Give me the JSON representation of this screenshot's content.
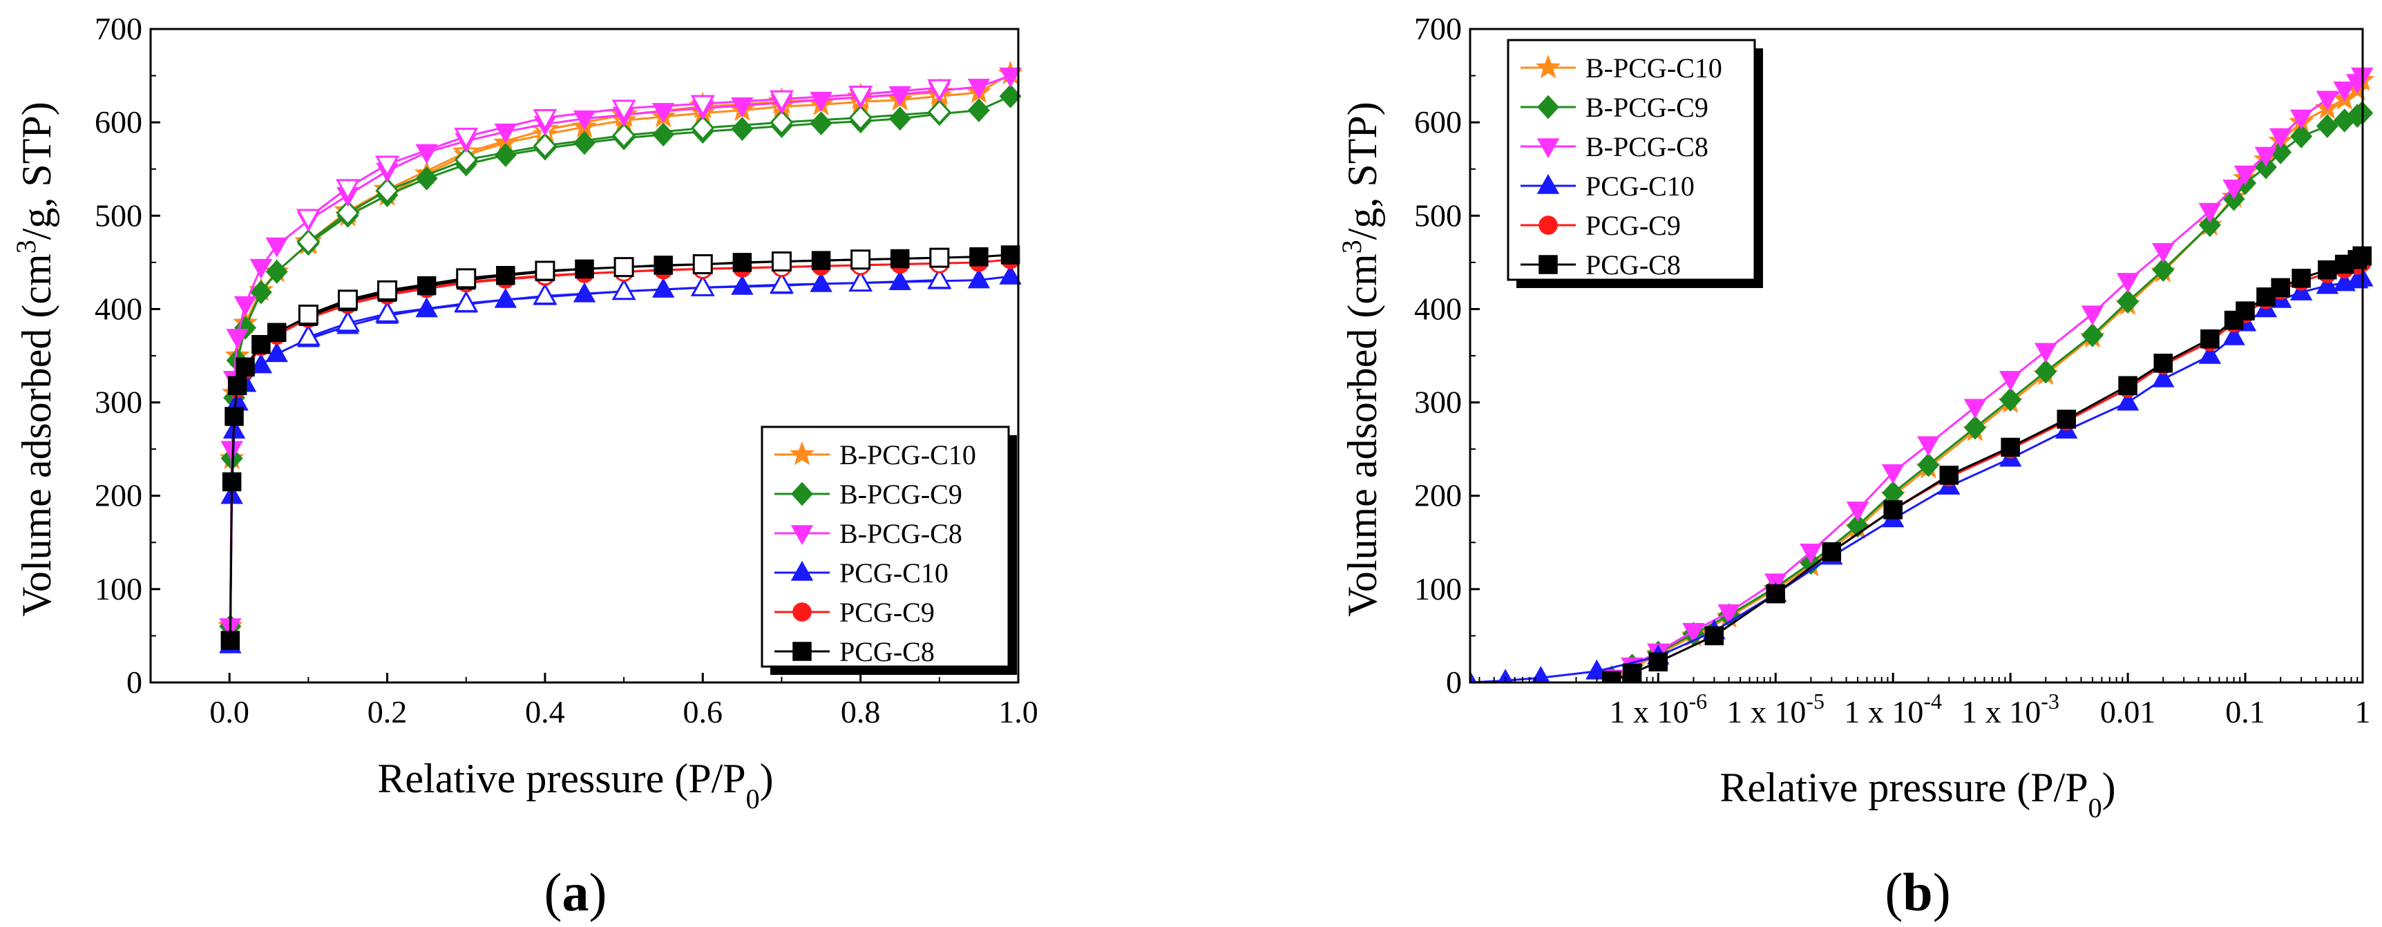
{
  "figure": {
    "panels": [
      {
        "label_open": "(",
        "label_letter": "a",
        "label_close": ")"
      },
      {
        "label_open": "(",
        "label_letter": "b",
        "label_close": ")"
      }
    ]
  },
  "chart_data": [
    {
      "type": "scatter",
      "xlabel": "Relative pressure (P/P0)",
      "ylabel": "Volume adsorbed (cm3/g, STP)",
      "xlim": [
        -0.1,
        1.0
      ],
      "ylim": [
        0,
        700
      ],
      "xticks": [
        0.0,
        0.2,
        0.4,
        0.6,
        0.8,
        1.0
      ],
      "xtick_labels": [
        "0.0",
        "0.2",
        "0.4",
        "0.6",
        "0.8",
        "1.0"
      ],
      "yticks": [
        0,
        100,
        200,
        300,
        400,
        500,
        600,
        700
      ],
      "ytick_labels": [
        "0",
        "100",
        "200",
        "300",
        "400",
        "500",
        "600",
        "700"
      ],
      "grid": false,
      "legend_position": "bottom-right",
      "series": [
        {
          "name": "B-PCG-C10",
          "color": "#ff8c1a",
          "marker": "star",
          "x": [
            0.001,
            0.003,
            0.006,
            0.01,
            0.02,
            0.04,
            0.06,
            0.1,
            0.15,
            0.2,
            0.25,
            0.3,
            0.35,
            0.4,
            0.45,
            0.5,
            0.55,
            0.6,
            0.65,
            0.7,
            0.75,
            0.8,
            0.85,
            0.9,
            0.95,
            0.99
          ],
          "y": [
            60,
            240,
            310,
            350,
            385,
            420,
            440,
            470,
            500,
            522,
            545,
            565,
            578,
            587,
            595,
            602,
            606,
            610,
            613,
            617,
            619,
            622,
            624,
            628,
            632,
            652
          ],
          "desorption_x": [
            0.9,
            0.8,
            0.7,
            0.6,
            0.5,
            0.4,
            0.3,
            0.2,
            0.15,
            0.1
          ],
          "desorption_y": [
            632,
            627,
            622,
            617,
            608,
            592,
            568,
            528,
            505,
            472
          ]
        },
        {
          "name": "B-PCG-C9",
          "color": "#1e8c1e",
          "marker": "diamond",
          "x": [
            0.001,
            0.003,
            0.006,
            0.01,
            0.02,
            0.04,
            0.06,
            0.1,
            0.15,
            0.2,
            0.25,
            0.3,
            0.35,
            0.4,
            0.45,
            0.5,
            0.55,
            0.6,
            0.65,
            0.7,
            0.75,
            0.8,
            0.85,
            0.9,
            0.95,
            0.99
          ],
          "y": [
            60,
            240,
            305,
            345,
            380,
            418,
            440,
            470,
            500,
            522,
            540,
            555,
            565,
            572,
            578,
            583,
            587,
            590,
            593,
            596,
            599,
            601,
            604,
            609,
            613,
            628
          ],
          "desorption_x": [
            0.9,
            0.8,
            0.7,
            0.6,
            0.5,
            0.4,
            0.3,
            0.2,
            0.15,
            0.1
          ],
          "desorption_y": [
            611,
            605,
            600,
            594,
            586,
            575,
            560,
            527,
            503,
            472
          ]
        },
        {
          "name": "B-PCG-C8",
          "color": "#ff33ff",
          "marker": "triangle-down",
          "x": [
            0.001,
            0.003,
            0.006,
            0.01,
            0.02,
            0.04,
            0.06,
            0.1,
            0.15,
            0.2,
            0.25,
            0.3,
            0.35,
            0.4,
            0.45,
            0.5,
            0.55,
            0.6,
            0.65,
            0.7,
            0.75,
            0.8,
            0.85,
            0.9,
            0.95,
            0.99
          ],
          "y": [
            60,
            250,
            325,
            370,
            405,
            445,
            468,
            495,
            522,
            548,
            568,
            580,
            590,
            598,
            604,
            608,
            612,
            615,
            618,
            621,
            624,
            627,
            630,
            634,
            638,
            650
          ],
          "desorption_x": [
            0.9,
            0.8,
            0.7,
            0.6,
            0.5,
            0.4,
            0.3,
            0.2,
            0.15,
            0.1
          ],
          "desorption_y": [
            637,
            630,
            625,
            620,
            615,
            605,
            585,
            555,
            530,
            498
          ]
        },
        {
          "name": "PCG-C10",
          "color": "#1a1aff",
          "marker": "triangle-up",
          "x": [
            0.001,
            0.003,
            0.006,
            0.01,
            0.02,
            0.04,
            0.06,
            0.1,
            0.15,
            0.2,
            0.25,
            0.3,
            0.35,
            0.4,
            0.45,
            0.5,
            0.55,
            0.6,
            0.65,
            0.7,
            0.75,
            0.8,
            0.85,
            0.9,
            0.95,
            0.99
          ],
          "y": [
            40,
            200,
            270,
            300,
            320,
            340,
            352,
            368,
            382,
            393,
            400,
            405,
            410,
            413,
            416,
            419,
            421,
            423,
            424,
            425,
            427,
            428,
            429,
            430,
            431,
            435
          ],
          "desorption_x": [
            0.9,
            0.8,
            0.7,
            0.6,
            0.5,
            0.4,
            0.3,
            0.2,
            0.15,
            0.1
          ],
          "desorption_y": [
            431,
            428,
            426,
            423,
            419,
            414,
            406,
            395,
            385,
            370
          ]
        },
        {
          "name": "PCG-C9",
          "color": "#ff1a1a",
          "marker": "circle",
          "x": [
            0.001,
            0.003,
            0.006,
            0.01,
            0.02,
            0.04,
            0.06,
            0.1,
            0.15,
            0.2,
            0.25,
            0.3,
            0.35,
            0.4,
            0.45,
            0.5,
            0.55,
            0.6,
            0.65,
            0.7,
            0.75,
            0.8,
            0.85,
            0.9,
            0.95,
            0.99
          ],
          "y": [
            45,
            215,
            285,
            315,
            335,
            360,
            372,
            390,
            405,
            415,
            422,
            428,
            432,
            435,
            438,
            440,
            442,
            443,
            444,
            445,
            446,
            447,
            448,
            449,
            450,
            453
          ],
          "desorption_x": [
            0.9,
            0.8,
            0.7,
            0.6,
            0.5,
            0.4,
            0.3,
            0.2,
            0.15,
            0.1
          ],
          "desorption_y": [
            449,
            447,
            445,
            443,
            440,
            436,
            429,
            417,
            407,
            392
          ]
        },
        {
          "name": "PCG-C8",
          "color": "#000000",
          "marker": "square",
          "x": [
            0.001,
            0.003,
            0.006,
            0.01,
            0.02,
            0.04,
            0.06,
            0.1,
            0.15,
            0.2,
            0.25,
            0.3,
            0.35,
            0.4,
            0.45,
            0.5,
            0.55,
            0.6,
            0.65,
            0.7,
            0.75,
            0.8,
            0.85,
            0.9,
            0.95,
            0.99
          ],
          "y": [
            45,
            215,
            285,
            318,
            338,
            362,
            375,
            392,
            408,
            418,
            425,
            431,
            436,
            440,
            443,
            445,
            447,
            448,
            450,
            451,
            452,
            453,
            454,
            455,
            456,
            458
          ],
          "desorption_x": [
            0.9,
            0.8,
            0.7,
            0.6,
            0.5,
            0.4,
            0.3,
            0.2,
            0.15,
            0.1
          ],
          "desorption_y": [
            455,
            453,
            451,
            448,
            445,
            441,
            433,
            420,
            410,
            394
          ]
        }
      ]
    },
    {
      "type": "scatter",
      "xscale": "log",
      "xlabel": "Relative pressure (P/P0)",
      "ylabel": "Volume adsorbed (cm3/g, STP)",
      "xlim": [
        2.5e-08,
        1.0
      ],
      "ylim": [
        0,
        700
      ],
      "xticks": [
        1e-06,
        1e-05,
        0.0001,
        0.001,
        0.01,
        0.1,
        1
      ],
      "xtick_labels": [
        "1 x 10",
        "1 x 10",
        "1 x 10",
        "1 x 10",
        "0.01",
        "0.1",
        "1"
      ],
      "xtick_exponents": [
        "-6",
        "-5",
        "-4",
        "-3",
        "",
        "",
        ""
      ],
      "yticks": [
        0,
        100,
        200,
        300,
        400,
        500,
        600,
        700
      ],
      "ytick_labels": [
        "0",
        "100",
        "200",
        "300",
        "400",
        "500",
        "600",
        "700"
      ],
      "grid": false,
      "legend_position": "top-left",
      "series": [
        {
          "name": "B-PCG-C10",
          "color": "#ff8c1a",
          "marker": "star",
          "x": [
            4e-07,
            6e-07,
            1e-06,
            2e-06,
            4e-06,
            1e-05,
            2e-05,
            5e-05,
            0.0001,
            0.0002,
            0.0005,
            0.001,
            0.002,
            0.005,
            0.01,
            0.02,
            0.05,
            0.08,
            0.1,
            0.15,
            0.2,
            0.3,
            0.5,
            0.7,
            0.9,
            0.99
          ],
          "y": [
            5,
            15,
            30,
            50,
            70,
            100,
            125,
            165,
            200,
            230,
            270,
            300,
            330,
            370,
            405,
            440,
            490,
            520,
            540,
            560,
            580,
            600,
            615,
            625,
            635,
            645
          ]
        },
        {
          "name": "B-PCG-C9",
          "color": "#1e8c1e",
          "marker": "diamond",
          "x": [
            4e-07,
            6e-07,
            1e-06,
            2e-06,
            4e-06,
            1e-05,
            2e-05,
            5e-05,
            0.0001,
            0.0002,
            0.0005,
            0.001,
            0.002,
            0.005,
            0.01,
            0.02,
            0.05,
            0.08,
            0.1,
            0.15,
            0.2,
            0.3,
            0.5,
            0.7,
            0.9,
            0.99
          ],
          "y": [
            5,
            18,
            32,
            52,
            72,
            102,
            128,
            168,
            203,
            233,
            273,
            303,
            333,
            372,
            408,
            442,
            490,
            518,
            535,
            552,
            568,
            585,
            596,
            602,
            607,
            610
          ]
        },
        {
          "name": "B-PCG-C8",
          "color": "#ff33ff",
          "marker": "triangle-down",
          "x": [
            4e-07,
            6e-07,
            1e-06,
            2e-06,
            4e-06,
            1e-05,
            2e-05,
            5e-05,
            0.0001,
            0.0002,
            0.0005,
            0.001,
            0.002,
            0.005,
            0.01,
            0.02,
            0.05,
            0.08,
            0.1,
            0.15,
            0.2,
            0.3,
            0.5,
            0.7,
            0.9,
            0.99
          ],
          "y": [
            5,
            18,
            33,
            55,
            75,
            108,
            140,
            185,
            225,
            255,
            295,
            325,
            355,
            395,
            430,
            462,
            505,
            530,
            545,
            565,
            585,
            605,
            625,
            635,
            643,
            650
          ]
        },
        {
          "name": "PCG-C10",
          "color": "#1a1aff",
          "marker": "triangle-up",
          "x": [
            2.5e-08,
            5e-08,
            1e-07,
            3e-07,
            1e-06,
            3e-06,
            1e-05,
            3e-05,
            0.0001,
            0.0003,
            0.001,
            0.003,
            0.01,
            0.02,
            0.05,
            0.08,
            0.1,
            0.15,
            0.2,
            0.3,
            0.5,
            0.7,
            0.9,
            0.99
          ],
          "y": [
            0,
            2,
            5,
            12,
            28,
            55,
            95,
            135,
            175,
            210,
            240,
            270,
            300,
            325,
            350,
            370,
            385,
            400,
            410,
            418,
            425,
            428,
            431,
            433
          ]
        },
        {
          "name": "PCG-C9",
          "color": "#ff1a1a",
          "marker": "circle",
          "x": [
            4e-07,
            6e-07,
            1e-06,
            3e-06,
            1e-05,
            3e-05,
            0.0001,
            0.0003,
            0.001,
            0.003,
            0.01,
            0.02,
            0.05,
            0.08,
            0.1,
            0.15,
            0.2,
            0.3,
            0.5,
            0.7,
            0.9,
            0.99
          ],
          "y": [
            2,
            10,
            22,
            50,
            95,
            140,
            185,
            220,
            250,
            280,
            315,
            340,
            365,
            385,
            395,
            410,
            420,
            430,
            438,
            443,
            447,
            450
          ]
        },
        {
          "name": "PCG-C8",
          "color": "#000000",
          "marker": "square",
          "x": [
            4e-07,
            6e-07,
            1e-06,
            3e-06,
            1e-05,
            3e-05,
            0.0001,
            0.0003,
            0.001,
            0.003,
            0.01,
            0.02,
            0.05,
            0.08,
            0.1,
            0.15,
            0.2,
            0.3,
            0.5,
            0.7,
            0.9,
            0.99
          ],
          "y": [
            2,
            10,
            22,
            50,
            95,
            140,
            185,
            222,
            252,
            282,
            318,
            342,
            368,
            388,
            398,
            413,
            423,
            433,
            442,
            448,
            453,
            457
          ]
        }
      ]
    }
  ]
}
